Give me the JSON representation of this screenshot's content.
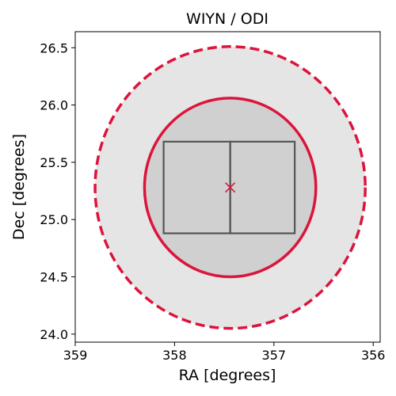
{
  "chart_data": {
    "type": "scatter",
    "title": "WIYN / ODI",
    "xlabel": "RA [degrees]",
    "ylabel": "Dec [degrees]",
    "xlim": [
      359.0,
      355.93
    ],
    "ylim": [
      23.93,
      26.64
    ],
    "x_inverted": true,
    "xticks": [
      359,
      358,
      357,
      356
    ],
    "yticks": [
      24.0,
      24.5,
      25.0,
      25.5,
      26.0,
      26.5
    ],
    "xtick_labels": [
      "359",
      "358",
      "357",
      "356"
    ],
    "ytick_labels": [
      "24.0",
      "24.5",
      "25.0",
      "25.5",
      "26.0",
      "26.5"
    ],
    "grid": false,
    "center": {
      "ra": 357.44,
      "dec": 25.28,
      "marker": "x",
      "color": "#dc143c"
    },
    "outer_field": {
      "ra": 357.44,
      "dec": 25.28,
      "radius_deg": 1.23,
      "fill": "#e5e5e5",
      "edge": "#dc143c",
      "linestyle": "dashed"
    },
    "inner_field": {
      "ra": 357.44,
      "dec": 25.28,
      "radius_deg": 0.78,
      "fill": "#d0d0d0",
      "edge": "#dc143c",
      "linestyle": "solid"
    },
    "detector_chips": [
      {
        "ra_min": 357.44,
        "ra_max": 358.11,
        "dec_min": 24.88,
        "dec_max": 25.68
      },
      {
        "ra_min": 356.79,
        "ra_max": 357.44,
        "dec_min": 24.88,
        "dec_max": 25.68
      }
    ],
    "chip_edge_color": "#555555"
  }
}
